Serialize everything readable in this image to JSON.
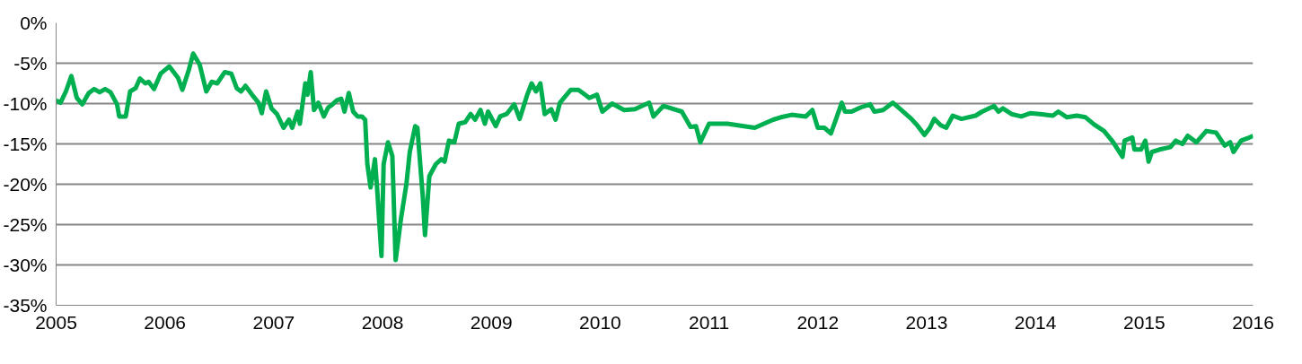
{
  "chart_data": {
    "type": "line",
    "x": [
      2005.0,
      2005.04,
      2005.09,
      2005.14,
      2005.19,
      2005.24,
      2005.3,
      2005.35,
      2005.4,
      2005.45,
      2005.5,
      2005.56,
      2005.58,
      2005.64,
      2005.68,
      2005.73,
      2005.77,
      2005.82,
      2005.85,
      2005.9,
      2005.96,
      2006.04,
      2006.12,
      2006.16,
      2006.22,
      2006.26,
      2006.32,
      2006.38,
      2006.43,
      2006.48,
      2006.55,
      2006.61,
      2006.66,
      2006.7,
      2006.74,
      2006.8,
      2006.86,
      2006.89,
      2006.93,
      2006.98,
      2007.03,
      2007.09,
      2007.14,
      2007.17,
      2007.22,
      2007.24,
      2007.29,
      2007.31,
      2007.34,
      2007.37,
      2007.41,
      2007.46,
      2007.5,
      2007.54,
      2007.58,
      2007.62,
      2007.65,
      2007.69,
      2007.73,
      2007.77,
      2007.81,
      2007.84,
      2007.86,
      2007.89,
      2007.93,
      2007.95,
      2007.99,
      2008.01,
      2008.05,
      2008.09,
      2008.12,
      2008.17,
      2008.22,
      2008.25,
      2008.3,
      2008.32,
      2008.37,
      2008.39,
      2008.43,
      2008.49,
      2008.54,
      2008.57,
      2008.61,
      2008.66,
      2008.7,
      2008.76,
      2008.81,
      2008.85,
      2008.9,
      2008.94,
      2008.97,
      2009.04,
      2009.08,
      2009.14,
      2009.21,
      2009.26,
      2009.33,
      2009.37,
      2009.41,
      2009.45,
      2009.49,
      2009.55,
      2009.59,
      2009.63,
      2009.73,
      2009.8,
      2009.86,
      2009.9,
      2009.97,
      2010.02,
      2010.11,
      2010.22,
      2010.32,
      2010.45,
      2010.49,
      2010.58,
      2010.75,
      2010.83,
      2010.88,
      2010.92,
      2011.0,
      2011.17,
      2011.32,
      2011.42,
      2011.59,
      2011.66,
      2011.76,
      2011.89,
      2011.95,
      2012.0,
      2012.06,
      2012.12,
      2012.16,
      2012.22,
      2012.25,
      2012.31,
      2012.39,
      2012.48,
      2012.52,
      2012.6,
      2012.69,
      2012.76,
      2012.86,
      2012.92,
      2012.98,
      2013.03,
      2013.07,
      2013.13,
      2013.18,
      2013.24,
      2013.32,
      2013.45,
      2013.51,
      2013.62,
      2013.66,
      2013.7,
      2013.78,
      2013.87,
      2013.95,
      2014.04,
      2014.16,
      2014.21,
      2014.29,
      2014.38,
      2014.46,
      2014.54,
      2014.63,
      2014.71,
      2014.8,
      2014.82,
      2014.89,
      2014.91,
      2014.97,
      2015.01,
      2015.04,
      2015.07,
      2015.14,
      2015.24,
      2015.29,
      2015.35,
      2015.4,
      2015.48,
      2015.57,
      2015.66,
      2015.74,
      2015.79,
      2015.82,
      2015.89,
      2015.95,
      2016.0
    ],
    "series": [
      {
        "color": "#00b050",
        "values": [
          -9.6,
          -9.9,
          -8.5,
          -6.6,
          -9.3,
          -10.1,
          -8.7,
          -8.2,
          -8.6,
          -8.2,
          -8.6,
          -10.1,
          -11.6,
          -11.6,
          -8.5,
          -8.1,
          -6.9,
          -7.5,
          -7.3,
          -8.2,
          -6.3,
          -5.4,
          -6.8,
          -8.3,
          -5.8,
          -3.8,
          -5.2,
          -8.5,
          -7.3,
          -7.5,
          -6.1,
          -6.3,
          -8.1,
          -8.5,
          -7.8,
          -8.9,
          -9.9,
          -11.2,
          -8.5,
          -10.6,
          -11.3,
          -13.0,
          -12.0,
          -13.0,
          -11.0,
          -12.5,
          -7.5,
          -8.9,
          -6.1,
          -10.8,
          -9.9,
          -11.6,
          -10.5,
          -10.1,
          -9.6,
          -9.4,
          -11.0,
          -8.7,
          -11.0,
          -11.6,
          -11.6,
          -12.0,
          -17.5,
          -20.4,
          -16.9,
          -20.5,
          -28.9,
          -17.5,
          -14.8,
          -16.5,
          -29.4,
          -24.2,
          -19.9,
          -16.0,
          -12.8,
          -13.0,
          -21.6,
          -26.3,
          -19.0,
          -17.5,
          -16.9,
          -17.2,
          -14.6,
          -14.8,
          -12.5,
          -12.3,
          -11.3,
          -12.0,
          -10.8,
          -12.5,
          -11.0,
          -12.8,
          -11.6,
          -11.3,
          -10.1,
          -11.9,
          -8.9,
          -7.5,
          -8.5,
          -7.5,
          -11.3,
          -10.7,
          -12.0,
          -9.9,
          -8.3,
          -8.3,
          -8.9,
          -9.3,
          -8.9,
          -11.0,
          -10.0,
          -10.8,
          -10.7,
          -9.9,
          -11.6,
          -10.3,
          -11.0,
          -12.9,
          -12.8,
          -14.8,
          -12.5,
          -12.5,
          -12.8,
          -13.0,
          -12.0,
          -11.7,
          -11.4,
          -11.6,
          -10.8,
          -13.0,
          -13.0,
          -13.7,
          -12.2,
          -9.9,
          -11.0,
          -11.0,
          -10.5,
          -10.1,
          -11.0,
          -10.8,
          -9.9,
          -10.7,
          -11.9,
          -12.8,
          -13.9,
          -13.0,
          -11.9,
          -12.7,
          -13.0,
          -11.5,
          -11.9,
          -11.5,
          -11.0,
          -10.3,
          -11.0,
          -10.6,
          -11.3,
          -11.6,
          -11.2,
          -11.3,
          -11.5,
          -11.0,
          -11.7,
          -11.5,
          -11.7,
          -12.6,
          -13.4,
          -14.7,
          -16.6,
          -14.6,
          -14.2,
          -15.7,
          -15.7,
          -14.6,
          -17.2,
          -16.0,
          -15.7,
          -15.4,
          -14.6,
          -15.0,
          -14.0,
          -14.8,
          -13.4,
          -13.6,
          -15.2,
          -14.8,
          -16.0,
          -14.6,
          -14.3,
          -14.0
        ]
      }
    ],
    "xlim": [
      2005,
      2016
    ],
    "xticks": [
      2005,
      2006,
      2007,
      2008,
      2009,
      2010,
      2011,
      2012,
      2013,
      2014,
      2015,
      2016
    ],
    "ylim": [
      -35,
      0
    ],
    "yticks": [
      {
        "value": 0,
        "label": "0%"
      },
      {
        "value": -5,
        "label": "-5%"
      },
      {
        "value": -10,
        "label": "-10%"
      },
      {
        "value": -15,
        "label": "-15%"
      },
      {
        "value": -20,
        "label": "-20%"
      },
      {
        "value": -25,
        "label": "-25%"
      },
      {
        "value": -30,
        "label": "-30%"
      },
      {
        "value": -35,
        "label": "-35%"
      }
    ],
    "grid": "y",
    "marker": "none",
    "line_style": "solid"
  }
}
